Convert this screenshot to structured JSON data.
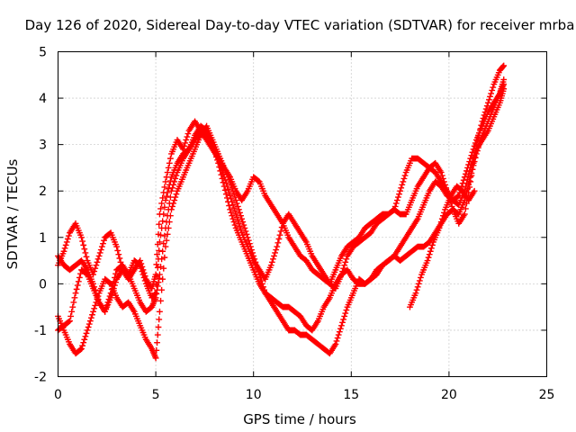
{
  "chart_data": {
    "type": "scatter",
    "title": "Day 126 of 2020, Sidereal Day-to-day VTEC variation (SDTVAR) for receiver mrba",
    "xlabel": "GPS time / hours",
    "ylabel": "SDTVAR / TECUs",
    "xlim": [
      0,
      25
    ],
    "ylim": [
      -2,
      5
    ],
    "xticks": [
      "0",
      "5",
      "10",
      "15",
      "20",
      "25"
    ],
    "yticks": [
      "-2",
      "-1",
      "0",
      "1",
      "2",
      "3",
      "4",
      "5"
    ],
    "grid": true,
    "marker": "+",
    "color": "#ff0000",
    "series": [
      {
        "name": "trace-1",
        "x": [
          0.0,
          0.3,
          0.6,
          0.9,
          1.2,
          1.5,
          1.8,
          2.1,
          2.4,
          2.7,
          3.0,
          3.3,
          3.6,
          3.9,
          4.2,
          4.5,
          4.8,
          5.0,
          5.2,
          5.5,
          5.8,
          6.1,
          6.4,
          6.7,
          7.0,
          7.3,
          7.6,
          7.9,
          8.2,
          8.5,
          8.8,
          9.1,
          9.4,
          9.7,
          10.0,
          10.3,
          10.6,
          10.9,
          11.2,
          11.5,
          11.8,
          12.1,
          12.4,
          12.7,
          13.0,
          13.3,
          13.6,
          13.9,
          14.2,
          14.5,
          14.8,
          15.1,
          15.4,
          15.7,
          16.0,
          16.3,
          16.6,
          16.9,
          17.2,
          17.5,
          17.8,
          18.1,
          18.4,
          18.7,
          19.0,
          19.3,
          19.6,
          19.9,
          20.2,
          20.5,
          20.8,
          21.1,
          21.4,
          21.7,
          22.0,
          22.3,
          22.6,
          22.8
        ],
        "y": [
          0.4,
          0.7,
          1.1,
          1.3,
          1.0,
          0.5,
          0.2,
          0.6,
          1.0,
          1.1,
          0.8,
          0.3,
          0.1,
          0.3,
          0.5,
          0.1,
          -0.1,
          0.2,
          1.5,
          2.2,
          2.8,
          3.1,
          2.9,
          3.3,
          3.5,
          3.3,
          3.1,
          2.9,
          2.7,
          2.5,
          2.3,
          2.0,
          1.8,
          2.0,
          2.3,
          2.2,
          1.9,
          1.7,
          1.5,
          1.3,
          1.0,
          0.8,
          0.6,
          0.5,
          0.3,
          0.2,
          0.1,
          0.0,
          0.3,
          0.6,
          0.8,
          0.9,
          1.0,
          1.2,
          1.3,
          1.4,
          1.5,
          1.5,
          1.6,
          2.0,
          2.4,
          2.7,
          2.7,
          2.6,
          2.5,
          2.6,
          2.4,
          2.0,
          1.6,
          1.3,
          1.5,
          2.2,
          3.0,
          3.5,
          3.9,
          4.3,
          4.6,
          4.7
        ]
      },
      {
        "name": "trace-2",
        "x": [
          0.0,
          0.3,
          0.6,
          0.9,
          1.2,
          1.5,
          1.8,
          2.1,
          2.4,
          2.7,
          3.0,
          3.3,
          3.6,
          3.9,
          4.2,
          4.5,
          4.8,
          5.0,
          5.2,
          5.5,
          5.8,
          6.1,
          6.4,
          6.7,
          7.0,
          7.3,
          7.6,
          7.9,
          8.2,
          8.5,
          8.8,
          9.1,
          9.4,
          9.7,
          10.0,
          10.3,
          10.6,
          10.9,
          11.2,
          11.5,
          11.8,
          12.1,
          12.4,
          12.7,
          13.0,
          13.3,
          13.6,
          13.9,
          14.2,
          14.5,
          14.8,
          15.1,
          15.4,
          15.7,
          16.0,
          16.3,
          16.6,
          16.9,
          17.2,
          17.5,
          17.8,
          18.1,
          18.4,
          18.7,
          19.0,
          19.3,
          19.6,
          19.9,
          20.2,
          20.5,
          20.8,
          21.1,
          21.4,
          21.7,
          22.0,
          22.3,
          22.6,
          22.8
        ],
        "y": [
          0.6,
          0.4,
          0.3,
          0.4,
          0.5,
          0.3,
          0.0,
          -0.4,
          -0.6,
          -0.3,
          0.1,
          0.3,
          0.2,
          0.5,
          0.4,
          0.0,
          -0.3,
          -0.2,
          0.9,
          1.8,
          2.3,
          2.6,
          2.8,
          2.9,
          3.1,
          3.3,
          3.2,
          3.0,
          2.7,
          2.3,
          1.9,
          1.5,
          1.1,
          0.8,
          0.5,
          0.3,
          0.1,
          0.4,
          0.8,
          1.3,
          1.5,
          1.3,
          1.1,
          0.9,
          0.6,
          0.4,
          0.2,
          0.0,
          -0.1,
          0.2,
          0.6,
          0.8,
          0.9,
          1.0,
          1.1,
          1.3,
          1.4,
          1.5,
          1.6,
          1.5,
          1.5,
          1.8,
          2.1,
          2.3,
          2.5,
          2.4,
          2.2,
          2.0,
          1.8,
          1.7,
          2.0,
          2.5,
          2.9,
          3.1,
          3.3,
          3.6,
          3.9,
          4.2
        ]
      },
      {
        "name": "trace-3",
        "x": [
          0.0,
          0.3,
          0.6,
          0.9,
          1.2,
          1.5,
          1.8,
          2.1,
          2.4,
          2.7,
          3.0,
          3.3,
          3.6,
          3.9,
          4.2,
          4.5,
          4.8,
          5.0,
          5.2,
          5.5,
          5.8,
          6.1,
          6.4,
          6.7,
          7.0,
          7.3,
          7.6,
          7.9,
          8.2,
          8.5,
          8.8,
          9.1,
          9.4,
          9.7,
          10.0,
          10.3,
          10.6,
          10.9,
          11.2,
          11.5,
          11.8,
          12.1,
          12.4,
          12.7,
          13.0,
          13.3,
          13.6,
          13.9,
          14.2,
          14.5,
          14.8,
          15.1,
          15.4,
          15.7,
          16.0,
          16.3,
          16.6,
          16.9,
          17.2,
          17.5,
          17.8,
          18.1,
          18.4,
          18.7,
          19.0,
          19.3,
          19.6,
          19.9,
          20.2,
          20.5,
          20.8,
          21.1,
          21.4,
          21.7,
          22.0,
          22.3,
          22.6,
          22.8
        ],
        "y": [
          -0.7,
          -1.0,
          -1.3,
          -1.5,
          -1.4,
          -1.0,
          -0.6,
          -0.2,
          0.1,
          0.0,
          -0.3,
          -0.5,
          -0.4,
          -0.6,
          -0.9,
          -1.2,
          -1.4,
          -1.6,
          -0.6,
          0.8,
          1.6,
          2.0,
          2.3,
          2.6,
          2.9,
          3.2,
          3.4,
          3.1,
          2.8,
          2.5,
          2.2,
          1.8,
          1.4,
          1.0,
          0.6,
          0.2,
          -0.2,
          -0.4,
          -0.6,
          -0.8,
          -1.0,
          -1.0,
          -1.1,
          -1.1,
          -1.2,
          -1.3,
          -1.4,
          -1.5,
          -1.3,
          -0.9,
          -0.5,
          -0.2,
          0.1,
          0.0,
          0.1,
          0.2,
          0.4,
          0.5,
          0.6,
          0.5,
          0.6,
          0.7,
          0.8,
          0.8,
          0.9,
          1.1,
          1.3,
          1.5,
          1.6,
          1.5,
          1.8,
          2.3,
          2.8,
          3.2,
          3.5,
          3.8,
          4.1,
          4.4
        ]
      },
      {
        "name": "trace-4",
        "x": [
          0.0,
          0.3,
          0.6,
          0.9,
          1.2,
          1.5,
          1.8,
          2.1,
          2.4,
          2.7,
          3.0,
          3.3,
          3.6,
          3.9,
          4.2,
          4.5,
          4.8,
          5.0,
          5.2,
          5.5,
          5.8,
          6.1,
          6.4,
          6.7,
          7.0,
          7.3,
          7.6,
          7.9,
          8.2,
          8.5,
          8.8,
          9.1,
          9.4,
          9.7,
          10.0,
          10.3,
          10.6,
          10.9,
          11.2,
          11.5,
          11.8,
          12.1,
          12.4,
          12.7,
          13.0,
          13.3,
          13.6,
          13.9,
          14.2,
          14.5,
          14.8,
          15.1,
          15.4,
          15.7,
          16.0,
          16.3,
          16.6,
          16.9,
          17.2,
          17.5,
          17.8,
          18.1,
          18.4,
          18.7,
          19.0,
          19.3,
          19.6,
          19.9,
          20.2,
          20.5,
          20.8,
          21.1,
          21.4,
          21.7,
          22.0,
          22.3,
          22.6,
          22.8
        ],
        "y": [
          -1.0,
          -0.9,
          -0.8,
          -0.2,
          0.3,
          0.2,
          -0.1,
          -0.4,
          -0.6,
          -0.2,
          0.3,
          0.4,
          0.2,
          -0.1,
          -0.4,
          -0.6,
          -0.5,
          -0.3,
          0.2,
          1.2,
          2.0,
          2.4,
          2.7,
          2.9,
          3.2,
          3.4,
          3.3,
          3.0,
          2.6,
          2.1,
          1.6,
          1.2,
          0.9,
          0.6,
          0.3,
          0.0,
          -0.2,
          -0.3,
          -0.4,
          -0.5,
          -0.5,
          -0.6,
          -0.7,
          -0.9,
          -1.0,
          -0.8,
          -0.5,
          -0.3,
          0.0,
          0.2,
          0.3,
          0.1,
          0.0,
          0.0,
          0.1,
          0.3,
          0.4,
          0.5,
          0.6,
          0.8,
          1.0,
          1.2,
          1.4,
          1.7,
          2.0,
          2.2,
          2.1,
          1.9,
          1.8,
          1.9,
          2.3,
          2.7,
          3.1,
          3.4,
          3.7,
          3.9,
          4.1,
          4.3
        ]
      },
      {
        "name": "trace-5",
        "x": [
          18.0,
          18.3,
          18.6,
          18.9,
          19.2,
          19.5,
          19.8,
          20.1,
          20.4,
          20.7,
          21.0,
          21.3
        ],
        "y": [
          -0.5,
          -0.2,
          0.2,
          0.5,
          0.9,
          1.2,
          1.6,
          1.9,
          2.1,
          2.0,
          1.8,
          2.0
        ]
      }
    ]
  }
}
